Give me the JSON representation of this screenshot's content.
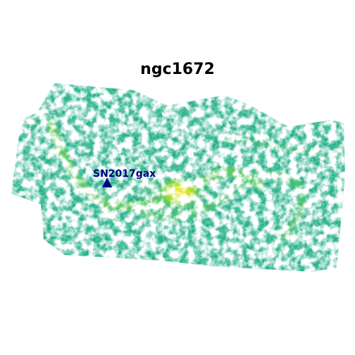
{
  "figure": {
    "title": "ngc1672"
  },
  "marker": {
    "label": "SN2017gax",
    "symbol": "triangle-up",
    "color": "#000080"
  },
  "colors": {
    "background": "#ffffff",
    "low_intensity": "#1f9e89",
    "mid_intensity": "#35b779",
    "high_intensity": "#b5de2b",
    "peak_intensity": "#fde725"
  }
}
